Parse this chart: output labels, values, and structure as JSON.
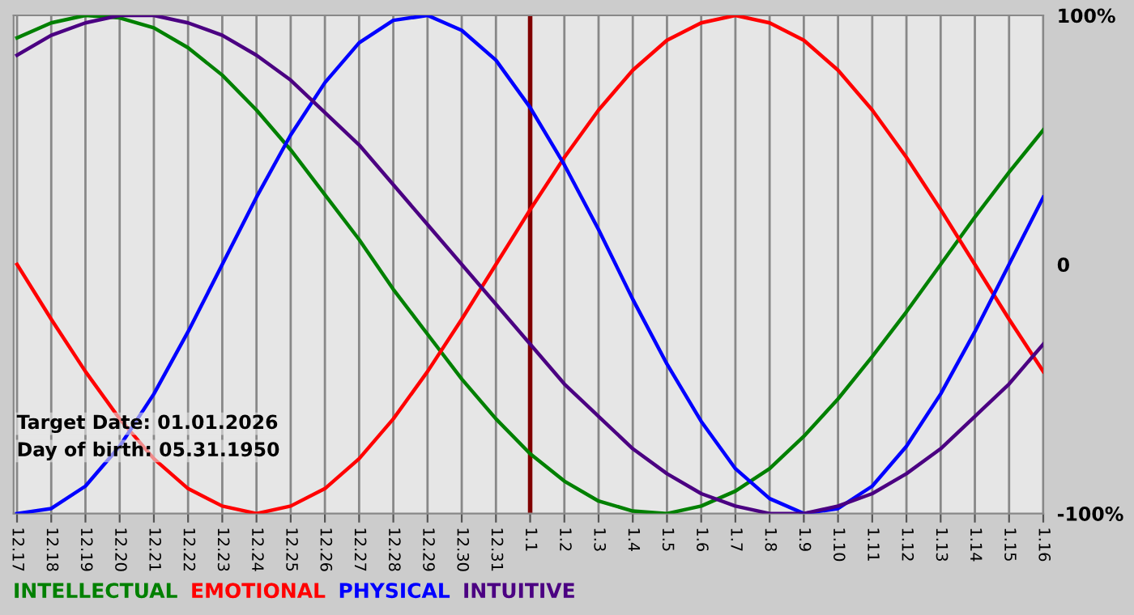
{
  "chart_data": {
    "type": "line",
    "categories": [
      "12.17",
      "12.18",
      "12.19",
      "12.20",
      "12.21",
      "12.22",
      "12.23",
      "12.24",
      "12.25",
      "12.26",
      "12.27",
      "12.28",
      "12.29",
      "12.30",
      "12.31",
      "1.1",
      "1.2",
      "1.3",
      "1.4",
      "1.5",
      "1.6",
      "1.7",
      "1.8",
      "1.9",
      "1.10",
      "1.11",
      "1.12",
      "1.13",
      "1.14",
      "1.15",
      "1.16"
    ],
    "series": [
      {
        "name": "INTELLECTUAL",
        "color": "#008000",
        "values": [
          91,
          97,
          100,
          99,
          95,
          87,
          76,
          62,
          46,
          28,
          10,
          -10,
          -28,
          -46,
          -62,
          -76,
          -87,
          -95,
          -99,
          -100,
          -97,
          -91,
          -82,
          -69,
          -54,
          -37,
          -19,
          0,
          19,
          37,
          54
        ]
      },
      {
        "name": "EMOTIONAL",
        "color": "#ff0000",
        "values": [
          0,
          -22,
          -43,
          -62,
          -78,
          -90,
          -97,
          -100,
          -97,
          -90,
          -78,
          -62,
          -43,
          -22,
          0,
          22,
          43,
          62,
          78,
          90,
          97,
          100,
          97,
          90,
          78,
          62,
          43,
          22,
          0,
          -22,
          -43
        ]
      },
      {
        "name": "PHYSICAL",
        "color": "#0000ff",
        "values": [
          -100,
          -98,
          -89,
          -73,
          -52,
          -27,
          0,
          27,
          52,
          73,
          89,
          98,
          100,
          94,
          82,
          63,
          40,
          14,
          -14,
          -40,
          -63,
          -82,
          -94,
          -100,
          -98,
          -89,
          -73,
          -52,
          -27,
          0,
          27
        ]
      },
      {
        "name": "INTUITIVE",
        "color": "#4b0082",
        "values": [
          84,
          92,
          97,
          100,
          100,
          97,
          92,
          84,
          74,
          61,
          48,
          32,
          16,
          0,
          -16,
          -32,
          -48,
          -61,
          -74,
          -84,
          -92,
          -97,
          -100,
          -100,
          -97,
          -92,
          -84,
          -74,
          -61,
          -48,
          -32
        ]
      }
    ],
    "ylim": [
      -100,
      100
    ],
    "yticks": [
      {
        "value": 100,
        "label": "100%"
      },
      0,
      {
        "value": -100,
        "label": "-100%"
      }
    ],
    "ref_lines": [
      {
        "axis": "x",
        "value": "1.1",
        "color": "#800000"
      }
    ],
    "annotations": [
      "Target Date: 01.01.2026",
      "Day of birth: 05.31.1950"
    ],
    "grid": "x",
    "legend": "bottom"
  }
}
